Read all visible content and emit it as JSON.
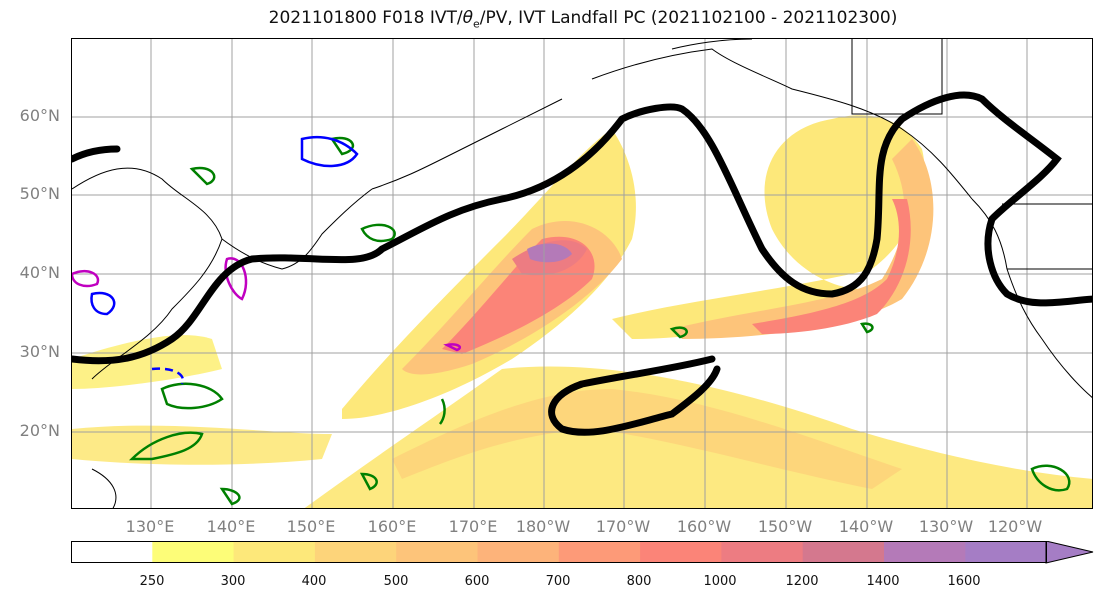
{
  "title_prefix": "2021101800 F018 IVT/",
  "title_theta": "θ",
  "title_sub": "e",
  "title_suffix": "/PV, IVT Landfall PC (2021102100 - 2021102300)",
  "lat_labels": [
    "60°N",
    "50°N",
    "40°N",
    "30°N",
    "20°N"
  ],
  "lon_labels": [
    "130°E",
    "140°E",
    "150°E",
    "160°E",
    "170°E",
    "180°W",
    "170°W",
    "160°W",
    "150°W",
    "140°W",
    "130°W",
    "120°W"
  ],
  "colorbar": {
    "ticks": [
      "250",
      "300",
      "400",
      "500",
      "600",
      "700",
      "800",
      "1000",
      "1200",
      "1400",
      "1600"
    ],
    "colors": [
      "#ffffff",
      "#fdfd78",
      "#fde87a",
      "#fdd47a",
      "#fdc47a",
      "#fdb37a",
      "#fd9a78",
      "#fb8478",
      "#ed7c82",
      "#d4788e",
      "#b47ab8",
      "#a57dc5"
    ]
  },
  "colors": {
    "pv_contour": "#008000",
    "theta_contour_blue": "#0000ff",
    "theta_contour_magenta": "#c000c0",
    "landfall_pc": "#000000",
    "gridline": "#a0a0a0",
    "coastline": "#000000"
  }
}
